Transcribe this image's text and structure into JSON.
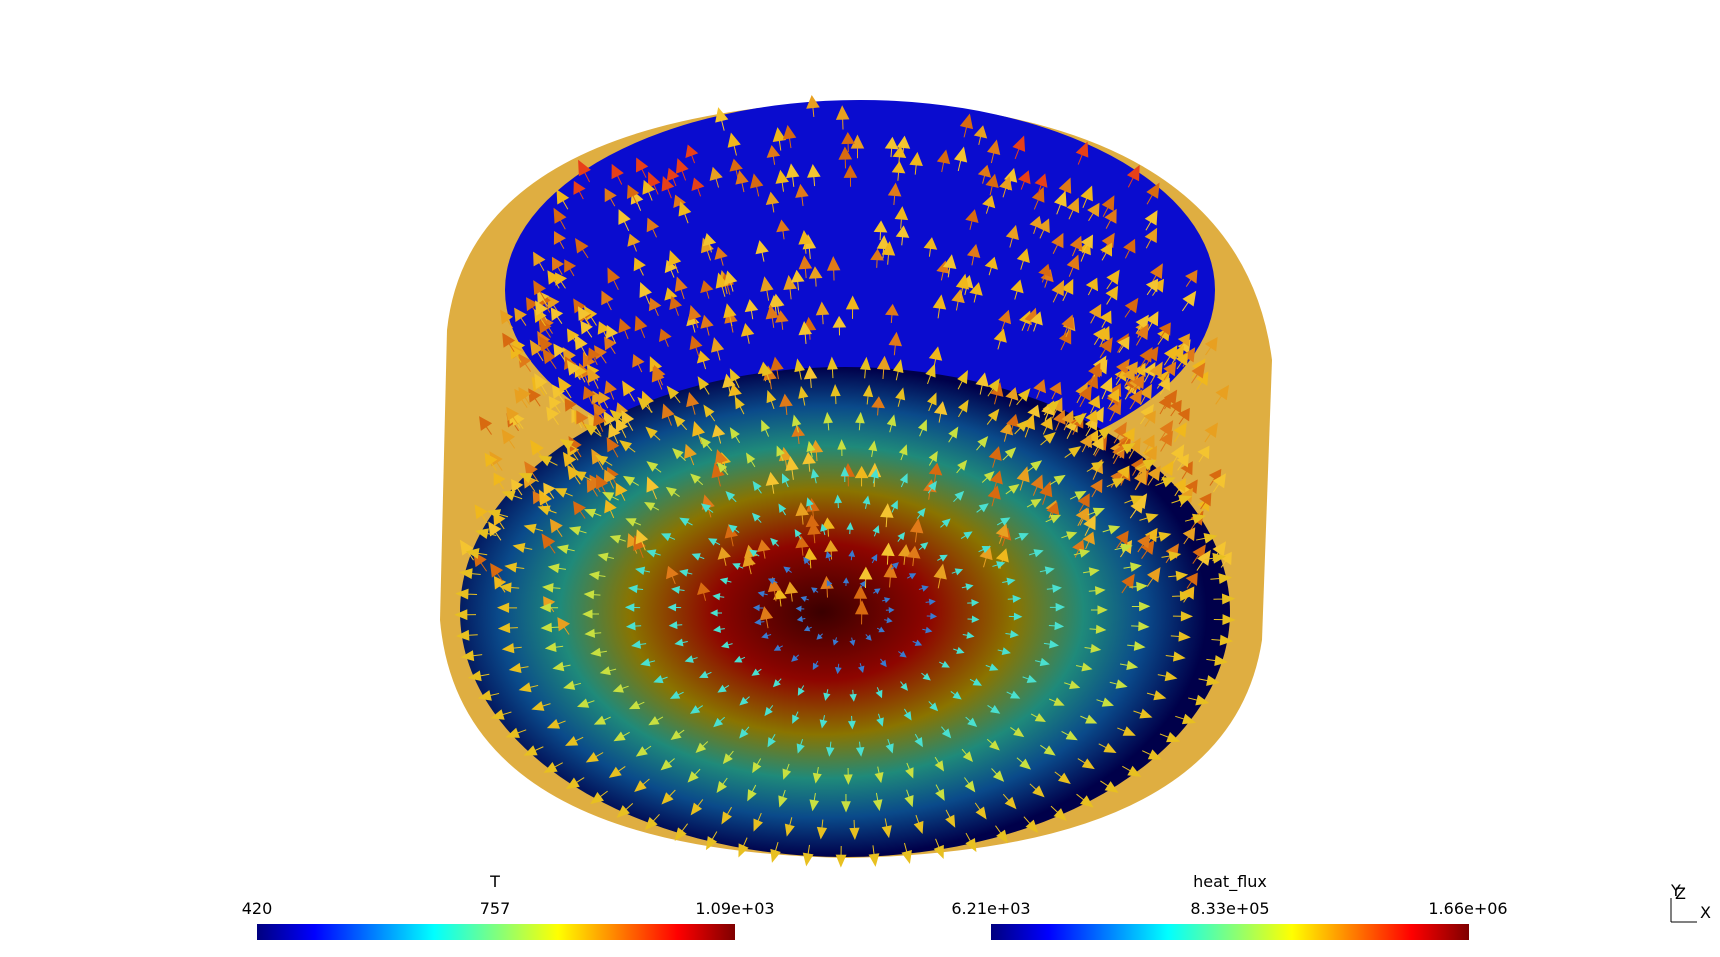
{
  "colorbars": [
    {
      "title": "T",
      "labels": [
        "420",
        "757",
        "1.09e+03"
      ]
    },
    {
      "title": "heat_flux",
      "labels": [
        "6.21e+03",
        "8.33e+05",
        "1.66e+06"
      ]
    }
  ],
  "axes_triad": {
    "y": "Y",
    "z": "Z",
    "x": "X"
  }
}
